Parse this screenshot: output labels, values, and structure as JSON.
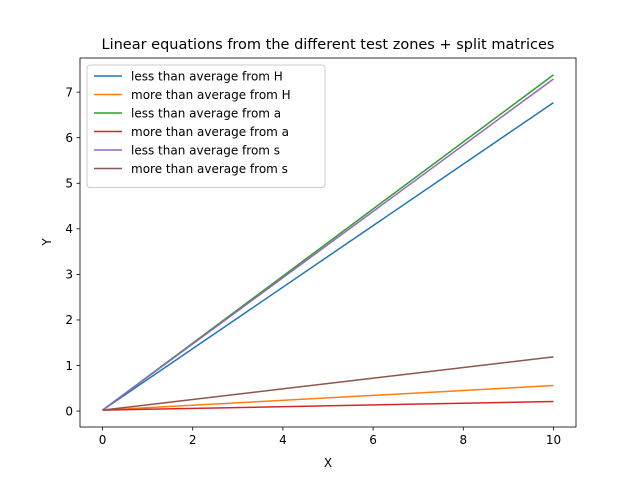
{
  "chart_data": {
    "type": "line",
    "title": "Linear equations from the different test zones + split matrices",
    "xlabel": "X",
    "ylabel": "Y",
    "xlim": [
      -0.5,
      10.5
    ],
    "ylim": [
      -0.35,
      7.75
    ],
    "xticks": [
      0,
      2,
      4,
      6,
      8,
      10
    ],
    "yticks": [
      0,
      1,
      2,
      3,
      4,
      5,
      6,
      7
    ],
    "grid": false,
    "legend_position": "top-left",
    "x": [
      0,
      10
    ],
    "series": [
      {
        "name": "less than average from H",
        "color": "#1f77b4",
        "values": [
          0.02,
          6.77
        ]
      },
      {
        "name": "more than average from H",
        "color": "#ff7f0e",
        "values": [
          0.02,
          0.56
        ]
      },
      {
        "name": "less than average from a",
        "color": "#2ca02c",
        "values": [
          0.02,
          7.38
        ]
      },
      {
        "name": "more than average from a",
        "color": "#d62728",
        "values": [
          0.02,
          0.21
        ]
      },
      {
        "name": "less than average from s",
        "color": "#9467bd",
        "values": [
          0.02,
          7.29
        ]
      },
      {
        "name": "more than average from s",
        "color": "#8c564b",
        "values": [
          0.02,
          1.19
        ]
      }
    ]
  }
}
